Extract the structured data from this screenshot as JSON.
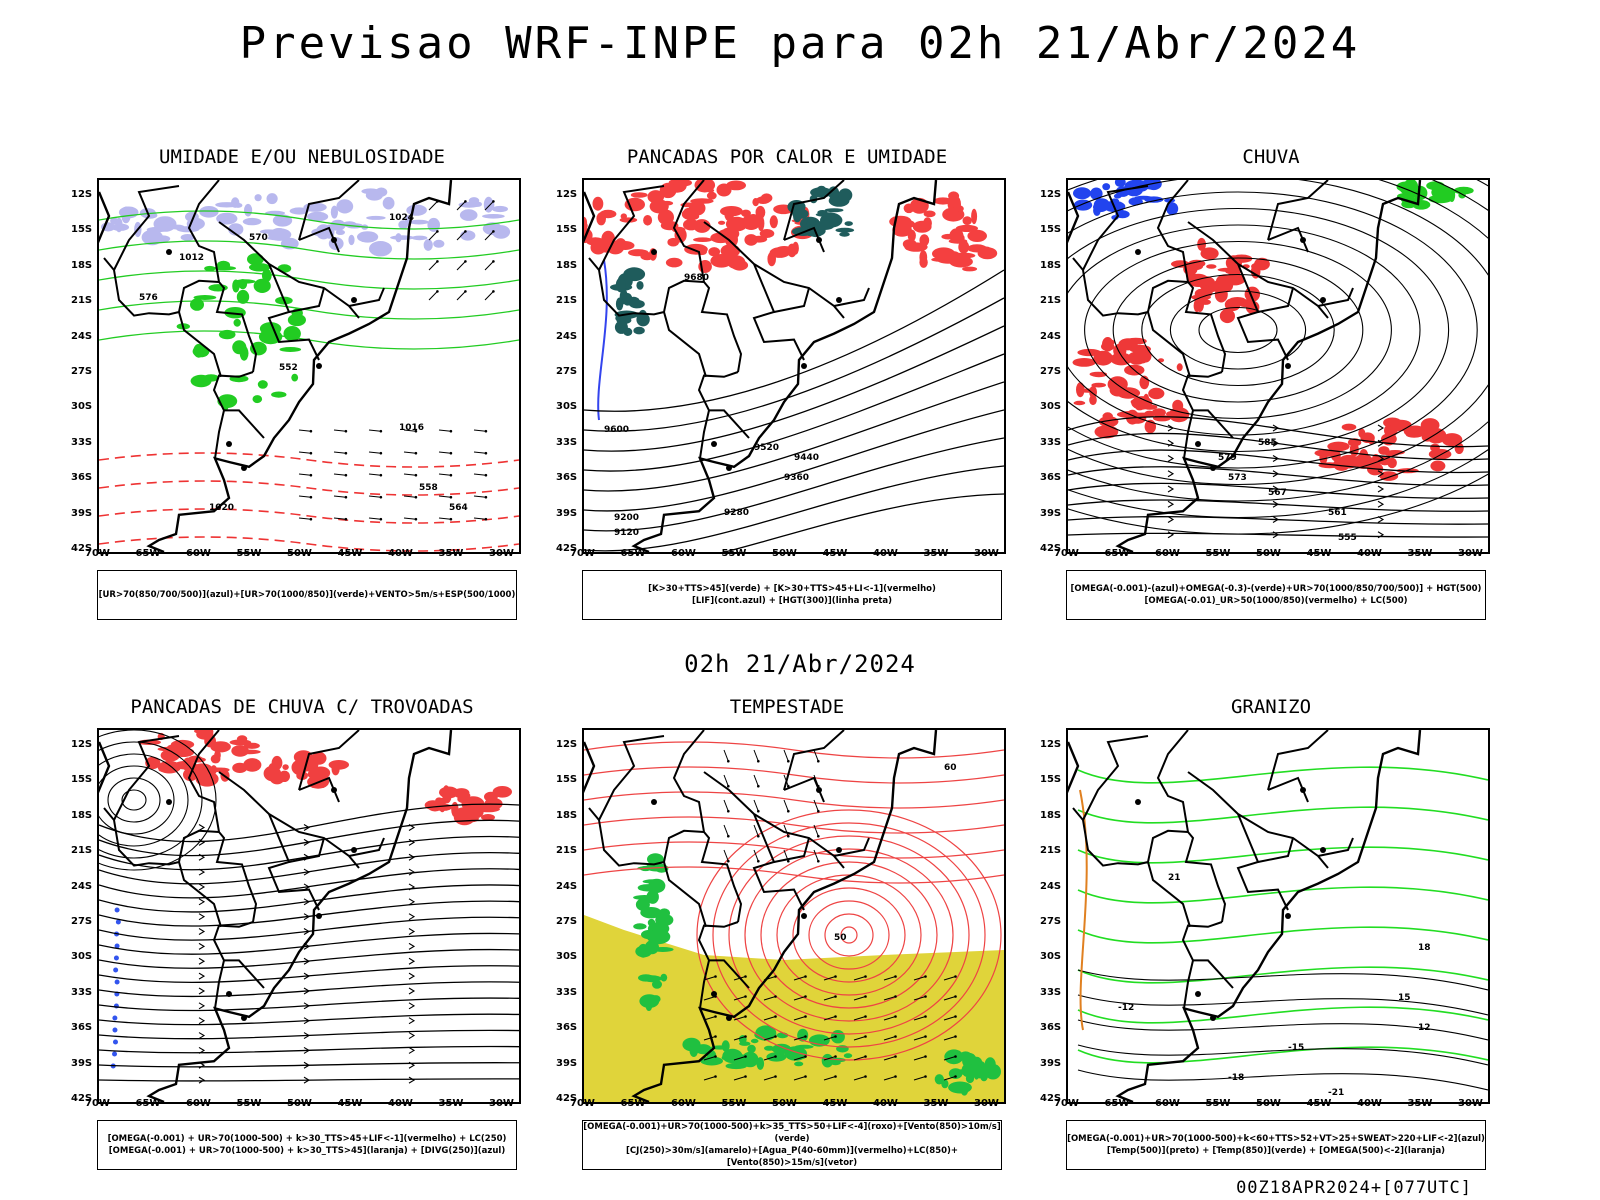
{
  "page": {
    "title": "Previsao WRF-INPE  para 02h 21/Abr/2024",
    "mid_date": "02h 21/Abr/2024",
    "footer": "00Z18APR2024+[077UTC]"
  },
  "axes": {
    "lat_ticks": [
      "12S",
      "15S",
      "18S",
      "21S",
      "24S",
      "27S",
      "30S",
      "33S",
      "36S",
      "39S",
      "42S"
    ],
    "lon_ticks": [
      "70W",
      "65W",
      "60W",
      "55W",
      "50W",
      "45W",
      "40W",
      "35W",
      "30W"
    ]
  },
  "chart_data": [
    {
      "type": "map",
      "title": "UMIDADE E/OU NEBULOSIDADE",
      "legend_lines": [
        "[UR>70(850/700/500)](azul)+[UR>70(1000/850)](verde)+VENTO>5m/s+ESP(500/1000)"
      ],
      "overlays": [
        "purple-shading",
        "green-contours",
        "red-dashed",
        "wind-vectors"
      ],
      "labels": [
        "1012",
        "1016",
        "1020",
        "1024",
        "552",
        "558",
        "564",
        "570",
        "576"
      ],
      "colors": {
        "shade": "#b8b8ee",
        "green": "#22cc22",
        "red": "#ee3333"
      }
    },
    {
      "type": "map",
      "title": "PANCADAS POR CALOR E UMIDADE",
      "legend_lines": [
        "[K>30+TTS>45](verde) + [K>30+TTS>45+LI<-1](vermelho)",
        "[LIF](cont.azul) + [HGT(300)](linha preta)"
      ],
      "overlays": [
        "red-fill",
        "teal-fill",
        "blue-contours",
        "black-contours"
      ],
      "labels": [
        "9120",
        "9200",
        "9280",
        "9360",
        "9440",
        "9520",
        "9600",
        "9680"
      ],
      "colors": {
        "red": "#f44040",
        "teal": "#1f5c5c",
        "blue": "#3344ee"
      }
    },
    {
      "type": "map",
      "title": "CHUVA",
      "legend_lines": [
        "[OMEGA(-0.001)-(azul)+OMEGA(-0.3)-(verde)+UR>70(1000/850/700/500)] + HGT(500)",
        "[OMEGA(-0.01)_UR>50(1000/850)(vermelho) + LC(500)"
      ],
      "overlays": [
        "red-fill",
        "blue-fill",
        "streamlines"
      ],
      "labels": [
        "555",
        "561",
        "567",
        "573",
        "579",
        "585"
      ],
      "colors": {
        "red": "#ee3838",
        "blue": "#2244ee",
        "green": "#22cc22"
      }
    },
    {
      "type": "map",
      "title": "PANCADAS DE CHUVA C/ TROVOADAS",
      "legend_lines": [
        "[OMEGA(-0.001) + UR>70(1000-500) + k>30_TTS>45+LIF<-1](vermelho) + LC(250)",
        "[OMEGA(-0.001) + UR>70(1000-500) + k>30_TTS>45](laranja) + [DIVG(250)](azul)"
      ],
      "overlays": [
        "red-fill",
        "blue-dots",
        "streamlines"
      ],
      "labels": [],
      "colors": {
        "red": "#f04040",
        "blue": "#3355ee",
        "orange": "#f08020"
      }
    },
    {
      "type": "map",
      "title": "TEMPESTADE",
      "legend_lines": [
        "[OMEGA(-0.001)+UR>70(1000-500)+k>35_TTS>50+LIF<-4](roxo)+[Vento(850)>10m/s](verde)",
        "[CJ(250)>30m/s](amarelo)+[Agua_P(40-60mm)](vermelho)+LC(850)+[Vento(850)>15m/s](vetor)"
      ],
      "overlays": [
        "yellow-fill",
        "green-fill",
        "red-contours",
        "wind-vectors"
      ],
      "labels": [
        "60",
        "50"
      ],
      "colors": {
        "yellow": "#e0d43a",
        "green": "#20c040",
        "red": "#ee4444"
      }
    },
    {
      "type": "map",
      "title": "GRANIZO",
      "legend_lines": [
        "[OMEGA(-0.001)+UR>70(1000-500)+k<60+TTS>52+VT>25+SWEAT>220+LIF<-2](azul)",
        "[Temp(500)](preto) + [Temp(850)](verde) + [OMEGA(500)<-2](laranja)"
      ],
      "overlays": [
        "green-contours",
        "black-contours"
      ],
      "labels": [
        "-21",
        "-18",
        "-15",
        "-12",
        "12",
        "15",
        "18",
        "21"
      ],
      "colors": {
        "green": "#22dd22",
        "orange": "#e08020"
      }
    }
  ]
}
